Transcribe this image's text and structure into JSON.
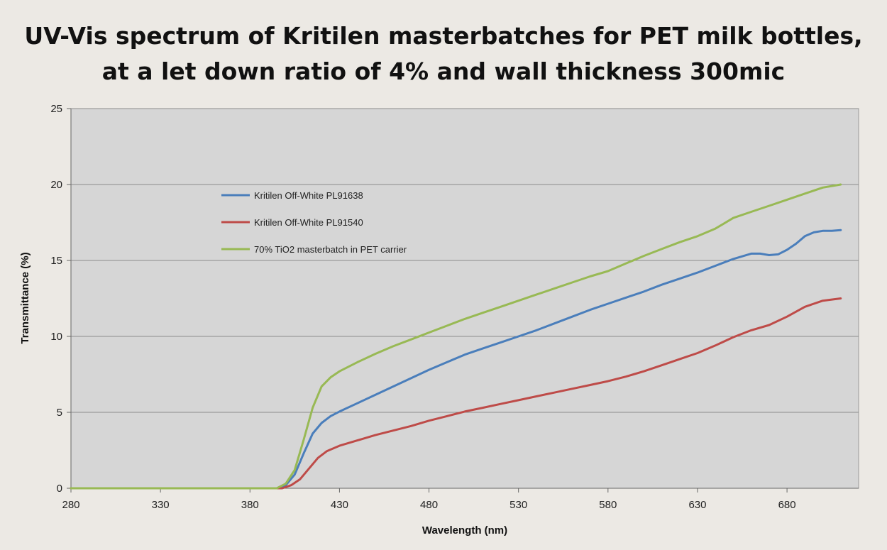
{
  "chart_data": {
    "type": "line",
    "title": [
      "UV-Vis spectrum of Kritilen masterbatches for PET milk bottles,",
      "at a let down ratio of 4% and wall thickness 300mic"
    ],
    "xlabel": "Wavelength (nm)",
    "ylabel": "Transmittance (%)",
    "xlim": [
      280,
      720
    ],
    "ylim": [
      0,
      25
    ],
    "xticks": [
      280,
      330,
      380,
      430,
      480,
      530,
      580,
      630,
      680
    ],
    "yticks": [
      0,
      5,
      10,
      15,
      20,
      25
    ],
    "grid": "horizontal",
    "legend_position": "upper-left inside plot",
    "plot_background": "#d6d6d6",
    "series": [
      {
        "name": "Kritilen Off-White PL91638",
        "color": "#4a7ebb",
        "x": [
          280,
          395,
          400,
          405,
          410,
          415,
          420,
          425,
          430,
          440,
          450,
          460,
          470,
          480,
          490,
          500,
          510,
          520,
          530,
          540,
          550,
          560,
          570,
          580,
          590,
          600,
          610,
          620,
          630,
          640,
          650,
          660,
          665,
          670,
          675,
          680,
          685,
          690,
          695,
          700,
          705,
          710
        ],
        "y": [
          0,
          0,
          0.2,
          0.9,
          2.3,
          3.6,
          4.3,
          4.75,
          5.05,
          5.6,
          6.15,
          6.7,
          7.25,
          7.8,
          8.3,
          8.8,
          9.2,
          9.6,
          10.0,
          10.4,
          10.85,
          11.3,
          11.75,
          12.15,
          12.55,
          12.95,
          13.4,
          13.8,
          14.2,
          14.65,
          15.1,
          15.45,
          15.45,
          15.35,
          15.4,
          15.7,
          16.1,
          16.6,
          16.85,
          16.95,
          16.95,
          17.0
        ]
      },
      {
        "name": "Kritilen Off-White PL91540",
        "color": "#be4b48",
        "x": [
          280,
          398,
          403,
          408,
          413,
          418,
          423,
          430,
          440,
          450,
          460,
          470,
          480,
          490,
          500,
          510,
          520,
          530,
          540,
          550,
          560,
          570,
          580,
          590,
          600,
          610,
          620,
          630,
          640,
          650,
          660,
          670,
          680,
          690,
          700,
          710
        ],
        "y": [
          0,
          0,
          0.2,
          0.6,
          1.3,
          2.0,
          2.45,
          2.8,
          3.15,
          3.5,
          3.8,
          4.1,
          4.45,
          4.75,
          5.05,
          5.3,
          5.55,
          5.8,
          6.05,
          6.3,
          6.55,
          6.8,
          7.05,
          7.35,
          7.7,
          8.1,
          8.5,
          8.9,
          9.4,
          9.95,
          10.4,
          10.75,
          11.3,
          11.95,
          12.35,
          12.5
        ]
      },
      {
        "name": "70% TiO2 masterbatch in PET carrier",
        "color": "#98b954",
        "x": [
          280,
          395,
          400,
          405,
          410,
          415,
          420,
          425,
          430,
          440,
          450,
          460,
          470,
          480,
          490,
          500,
          510,
          520,
          530,
          540,
          550,
          560,
          570,
          580,
          590,
          600,
          610,
          620,
          630,
          640,
          650,
          660,
          670,
          680,
          690,
          700,
          710
        ],
        "y": [
          0,
          0,
          0.3,
          1.2,
          3.2,
          5.3,
          6.7,
          7.3,
          7.7,
          8.3,
          8.85,
          9.35,
          9.8,
          10.25,
          10.7,
          11.15,
          11.55,
          11.95,
          12.35,
          12.75,
          13.15,
          13.55,
          13.95,
          14.3,
          14.8,
          15.3,
          15.75,
          16.2,
          16.6,
          17.1,
          17.8,
          18.2,
          18.6,
          19.0,
          19.4,
          19.8,
          20.0
        ]
      }
    ]
  }
}
